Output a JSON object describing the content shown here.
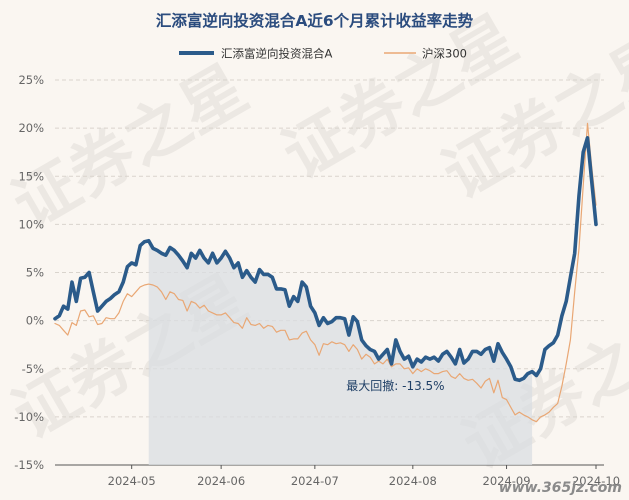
{
  "chart_data": {
    "type": "line",
    "title": "汇添富逆向投资混合A近6个月累计收益率走势",
    "legend_position": "top",
    "grid": true,
    "y_ticks": [
      "25%",
      "20%",
      "15%",
      "10%",
      "5%",
      "0%",
      "-5%",
      "-10%",
      "-15%"
    ],
    "ylim": [
      -15,
      25
    ],
    "x_ticks": [
      "2024-05",
      "2024-06",
      "2024-07",
      "2024-08",
      "2024-09",
      "2024-10"
    ],
    "x_tick_index": [
      18,
      39,
      61,
      84,
      106,
      127
    ],
    "drawdown_range": [
      22,
      112
    ],
    "annotation": "最大回撤: -13.5%",
    "watermark": "证券之星",
    "site": "www.365jz.com",
    "colors": {
      "fund": "#2b5b8a",
      "index": "#e9a774",
      "drawdown_fill": "#d9dde2"
    },
    "series": [
      {
        "name": "汇添富逆向投资混合A",
        "values": [
          0.2,
          0.5,
          1.5,
          1.2,
          4.0,
          2.0,
          4.4,
          4.5,
          5.0,
          3.0,
          1.0,
          1.5,
          2.0,
          2.3,
          2.7,
          3.0,
          4.0,
          5.6,
          6.0,
          5.8,
          7.8,
          8.2,
          8.3,
          7.5,
          7.3,
          7.0,
          6.8,
          7.6,
          7.3,
          6.8,
          6.2,
          5.5,
          7.0,
          6.5,
          7.3,
          6.5,
          6.0,
          7.0,
          6.0,
          6.5,
          7.2,
          6.5,
          5.5,
          6.0,
          4.5,
          5.2,
          4.5,
          4.0,
          5.3,
          4.8,
          4.8,
          4.5,
          3.3,
          3.3,
          3.2,
          1.5,
          2.5,
          2.0,
          4.0,
          3.5,
          1.5,
          0.8,
          -0.5,
          0.3,
          -0.3,
          -0.1,
          0.3,
          0.3,
          0.2,
          -1.5,
          0.4,
          -0.1,
          -2.0,
          -2.6,
          -3.0,
          -3.2,
          -4.0,
          -3.5,
          -3.0,
          -4.5,
          -2.0,
          -3.2,
          -4.0,
          -3.7,
          -4.8,
          -4.0,
          -4.3,
          -3.8,
          -4.0,
          -3.8,
          -4.2,
          -3.5,
          -3.2,
          -3.8,
          -4.5,
          -3.0,
          -4.4,
          -4.0,
          -3.2,
          -3.2,
          -3.5,
          -3.0,
          -2.8,
          -4.2,
          -2.4,
          -3.3,
          -4.0,
          -4.8,
          -6.1,
          -6.2,
          -6.0,
          -5.5,
          -5.3,
          -5.7,
          -5.0,
          -3.0,
          -2.6,
          -2.3,
          -1.5,
          0.5,
          2.0,
          4.5,
          7.0,
          13.0,
          17.5,
          19.0,
          14.5,
          10.0
        ]
      },
      {
        "name": "沪深300",
        "values": [
          -0.3,
          -0.5,
          -1.0,
          -1.5,
          -0.2,
          -0.5,
          1.0,
          1.1,
          0.4,
          0.5,
          -0.4,
          -0.3,
          0.3,
          0.2,
          0.2,
          0.8,
          2.0,
          2.8,
          2.5,
          3.0,
          3.5,
          3.7,
          3.8,
          3.7,
          3.5,
          3.0,
          2.2,
          3.0,
          2.8,
          2.2,
          2.1,
          1.0,
          2.0,
          1.8,
          1.3,
          1.6,
          1.0,
          0.8,
          0.6,
          0.6,
          0.8,
          0.3,
          -0.2,
          -0.3,
          -0.8,
          0.3,
          -0.4,
          -0.5,
          -0.3,
          -0.8,
          -0.5,
          -0.6,
          -1.2,
          -1.0,
          -1.0,
          -2.0,
          -1.9,
          -1.9,
          -1.3,
          -1.1,
          -2.0,
          -2.5,
          -3.6,
          -2.4,
          -2.5,
          -2.2,
          -2.4,
          -2.3,
          -2.5,
          -3.2,
          -2.5,
          -3.0,
          -4.0,
          -3.5,
          -3.8,
          -4.5,
          -4.2,
          -4.5,
          -4.0,
          -4.8,
          -4.5,
          -4.5,
          -5.0,
          -4.9,
          -5.5,
          -5.0,
          -5.3,
          -5.0,
          -5.2,
          -5.5,
          -5.5,
          -5.3,
          -5.2,
          -5.8,
          -6.0,
          -5.5,
          -6.0,
          -6.2,
          -6.1,
          -6.5,
          -7.0,
          -6.3,
          -6.0,
          -7.5,
          -6.2,
          -8.0,
          -8.2,
          -9.0,
          -9.8,
          -9.5,
          -9.8,
          -10.0,
          -10.3,
          -10.5,
          -10.0,
          -9.8,
          -9.5,
          -9.0,
          -8.6,
          -6.8,
          -4.5,
          -2.0,
          3.0,
          7.5,
          14.0,
          20.5,
          16.0,
          12.0
        ]
      }
    ]
  }
}
